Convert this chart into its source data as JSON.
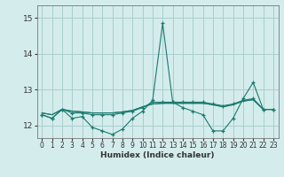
{
  "title": "",
  "xlabel": "Humidex (Indice chaleur)",
  "bg_color": "#d4ecec",
  "grid_color": "#aacece",
  "line_color": "#1a7a6e",
  "xlim": [
    -0.5,
    23.5
  ],
  "ylim": [
    11.65,
    15.35
  ],
  "yticks": [
    12,
    13,
    14,
    15
  ],
  "xticks": [
    0,
    1,
    2,
    3,
    4,
    5,
    6,
    7,
    8,
    9,
    10,
    11,
    12,
    13,
    14,
    15,
    16,
    17,
    18,
    19,
    20,
    21,
    22,
    23
  ],
  "series1": [
    12.3,
    12.2,
    12.45,
    12.2,
    12.25,
    11.95,
    11.85,
    11.75,
    11.9,
    12.2,
    12.4,
    12.7,
    14.85,
    12.65,
    12.5,
    12.4,
    12.3,
    11.85,
    11.85,
    12.2,
    12.75,
    13.2,
    12.45,
    12.45
  ],
  "series2": [
    12.3,
    12.2,
    12.45,
    12.35,
    12.35,
    12.3,
    12.3,
    12.3,
    12.35,
    12.4,
    12.5,
    12.65,
    12.65,
    12.65,
    12.65,
    12.65,
    12.65,
    12.6,
    12.55,
    12.6,
    12.7,
    12.75,
    12.45,
    12.45
  ],
  "series3": [
    12.35,
    12.3,
    12.45,
    12.4,
    12.38,
    12.35,
    12.35,
    12.35,
    12.38,
    12.42,
    12.52,
    12.6,
    12.62,
    12.62,
    12.62,
    12.62,
    12.62,
    12.58,
    12.52,
    12.58,
    12.68,
    12.72,
    12.45,
    12.45
  ],
  "series4": [
    12.35,
    12.3,
    12.45,
    12.4,
    12.38,
    12.35,
    12.35,
    12.35,
    12.38,
    12.42,
    12.52,
    12.6,
    12.62,
    12.62,
    12.62,
    12.62,
    12.62,
    12.58,
    12.52,
    12.58,
    12.68,
    12.72,
    12.45,
    12.45
  ]
}
